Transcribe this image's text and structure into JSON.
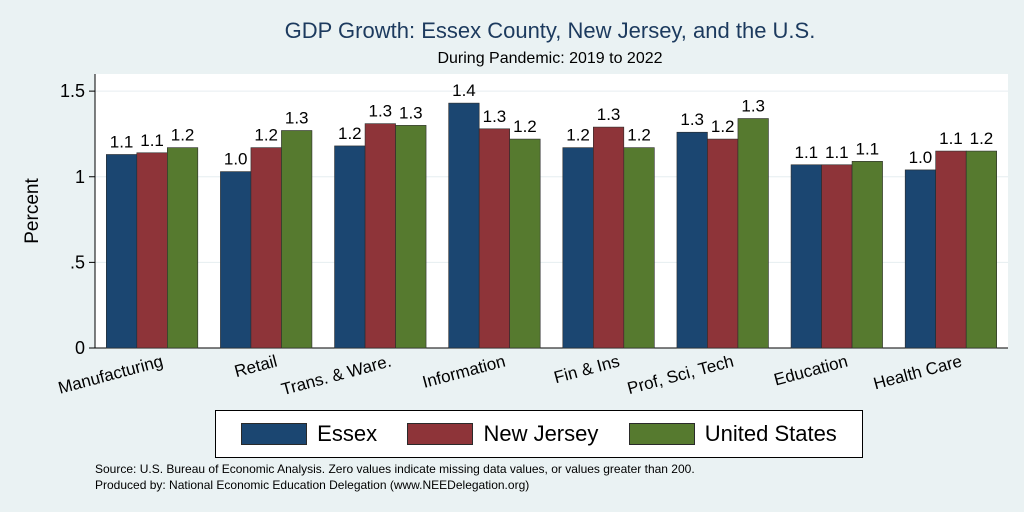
{
  "chart_data": {
    "type": "bar",
    "title": "GDP Growth: Essex County, New Jersey, and the U.S.",
    "subtitle": "During Pandemic: 2019 to 2022",
    "xlabel": "",
    "ylabel": "Percent",
    "ylim": [
      0,
      1.6
    ],
    "yticks": [
      0,
      0.5,
      1,
      1.5
    ],
    "ytick_labels": [
      "0",
      ".5",
      "1",
      "1.5"
    ],
    "categories": [
      "Manufacturing",
      "Retail",
      "Trans. & Ware.",
      "Information",
      "Fin & Ins",
      "Prof, Sci, Tech",
      "Education",
      "Health Care"
    ],
    "series": [
      {
        "name": "Essex",
        "color": "#1b4671",
        "values": [
          1.13,
          1.03,
          1.18,
          1.43,
          1.17,
          1.26,
          1.07,
          1.04
        ],
        "labels": [
          "1.1",
          "1.0",
          "1.2",
          "1.4",
          "1.2",
          "1.3",
          "1.1",
          "1.0"
        ]
      },
      {
        "name": "New Jersey",
        "color": "#8e3439",
        "values": [
          1.14,
          1.17,
          1.31,
          1.28,
          1.29,
          1.22,
          1.07,
          1.15
        ],
        "labels": [
          "1.1",
          "1.2",
          "1.3",
          "1.3",
          "1.3",
          "1.2",
          "1.1",
          "1.1"
        ]
      },
      {
        "name": "United States",
        "color": "#567a2f",
        "values": [
          1.17,
          1.27,
          1.3,
          1.22,
          1.17,
          1.34,
          1.09,
          1.15
        ],
        "labels": [
          "1.2",
          "1.3",
          "1.3",
          "1.2",
          "1.2",
          "1.3",
          "1.1",
          "1.2"
        ]
      }
    ],
    "grid": true,
    "legend_position": "bottom"
  },
  "footer": {
    "source": "Source: U.S. Bureau of Economic Analysis. Zero values indicate missing data values, or values greater than 200.",
    "produced_by": "Produced by: National Economic Education Delegation (www.NEEDelegation.org)"
  }
}
